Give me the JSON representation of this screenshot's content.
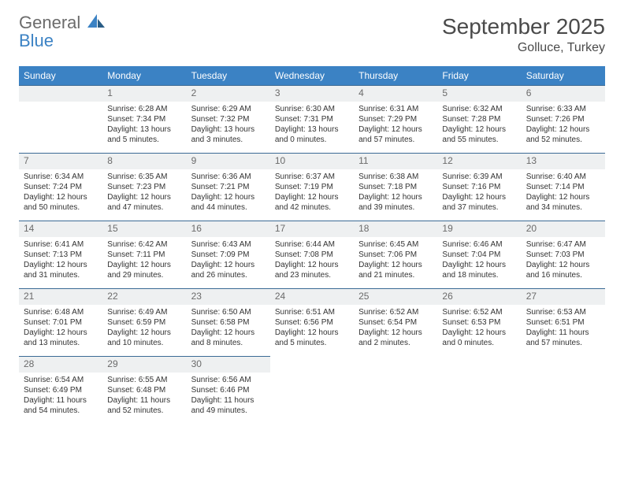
{
  "brand": {
    "part1": "General",
    "part2": "Blue"
  },
  "title": "September 2025",
  "location": "Golluce, Turkey",
  "colors": {
    "header_bg": "#3b82c4",
    "header_text": "#ffffff",
    "daynum_bg": "#eef0f1",
    "daynum_text": "#6b6b6b",
    "border": "#3b6a95",
    "title_text": "#4a4a4a",
    "body_text": "#333333",
    "logo_gray": "#6b6b6b",
    "logo_blue": "#3b82c4"
  },
  "day_names": [
    "Sunday",
    "Monday",
    "Tuesday",
    "Wednesday",
    "Thursday",
    "Friday",
    "Saturday"
  ],
  "weeks": [
    [
      null,
      {
        "n": "1",
        "sr": "Sunrise: 6:28 AM",
        "ss": "Sunset: 7:34 PM",
        "dl1": "Daylight: 13 hours",
        "dl2": "and 5 minutes."
      },
      {
        "n": "2",
        "sr": "Sunrise: 6:29 AM",
        "ss": "Sunset: 7:32 PM",
        "dl1": "Daylight: 13 hours",
        "dl2": "and 3 minutes."
      },
      {
        "n": "3",
        "sr": "Sunrise: 6:30 AM",
        "ss": "Sunset: 7:31 PM",
        "dl1": "Daylight: 13 hours",
        "dl2": "and 0 minutes."
      },
      {
        "n": "4",
        "sr": "Sunrise: 6:31 AM",
        "ss": "Sunset: 7:29 PM",
        "dl1": "Daylight: 12 hours",
        "dl2": "and 57 minutes."
      },
      {
        "n": "5",
        "sr": "Sunrise: 6:32 AM",
        "ss": "Sunset: 7:28 PM",
        "dl1": "Daylight: 12 hours",
        "dl2": "and 55 minutes."
      },
      {
        "n": "6",
        "sr": "Sunrise: 6:33 AM",
        "ss": "Sunset: 7:26 PM",
        "dl1": "Daylight: 12 hours",
        "dl2": "and 52 minutes."
      }
    ],
    [
      {
        "n": "7",
        "sr": "Sunrise: 6:34 AM",
        "ss": "Sunset: 7:24 PM",
        "dl1": "Daylight: 12 hours",
        "dl2": "and 50 minutes."
      },
      {
        "n": "8",
        "sr": "Sunrise: 6:35 AM",
        "ss": "Sunset: 7:23 PM",
        "dl1": "Daylight: 12 hours",
        "dl2": "and 47 minutes."
      },
      {
        "n": "9",
        "sr": "Sunrise: 6:36 AM",
        "ss": "Sunset: 7:21 PM",
        "dl1": "Daylight: 12 hours",
        "dl2": "and 44 minutes."
      },
      {
        "n": "10",
        "sr": "Sunrise: 6:37 AM",
        "ss": "Sunset: 7:19 PM",
        "dl1": "Daylight: 12 hours",
        "dl2": "and 42 minutes."
      },
      {
        "n": "11",
        "sr": "Sunrise: 6:38 AM",
        "ss": "Sunset: 7:18 PM",
        "dl1": "Daylight: 12 hours",
        "dl2": "and 39 minutes."
      },
      {
        "n": "12",
        "sr": "Sunrise: 6:39 AM",
        "ss": "Sunset: 7:16 PM",
        "dl1": "Daylight: 12 hours",
        "dl2": "and 37 minutes."
      },
      {
        "n": "13",
        "sr": "Sunrise: 6:40 AM",
        "ss": "Sunset: 7:14 PM",
        "dl1": "Daylight: 12 hours",
        "dl2": "and 34 minutes."
      }
    ],
    [
      {
        "n": "14",
        "sr": "Sunrise: 6:41 AM",
        "ss": "Sunset: 7:13 PM",
        "dl1": "Daylight: 12 hours",
        "dl2": "and 31 minutes."
      },
      {
        "n": "15",
        "sr": "Sunrise: 6:42 AM",
        "ss": "Sunset: 7:11 PM",
        "dl1": "Daylight: 12 hours",
        "dl2": "and 29 minutes."
      },
      {
        "n": "16",
        "sr": "Sunrise: 6:43 AM",
        "ss": "Sunset: 7:09 PM",
        "dl1": "Daylight: 12 hours",
        "dl2": "and 26 minutes."
      },
      {
        "n": "17",
        "sr": "Sunrise: 6:44 AM",
        "ss": "Sunset: 7:08 PM",
        "dl1": "Daylight: 12 hours",
        "dl2": "and 23 minutes."
      },
      {
        "n": "18",
        "sr": "Sunrise: 6:45 AM",
        "ss": "Sunset: 7:06 PM",
        "dl1": "Daylight: 12 hours",
        "dl2": "and 21 minutes."
      },
      {
        "n": "19",
        "sr": "Sunrise: 6:46 AM",
        "ss": "Sunset: 7:04 PM",
        "dl1": "Daylight: 12 hours",
        "dl2": "and 18 minutes."
      },
      {
        "n": "20",
        "sr": "Sunrise: 6:47 AM",
        "ss": "Sunset: 7:03 PM",
        "dl1": "Daylight: 12 hours",
        "dl2": "and 16 minutes."
      }
    ],
    [
      {
        "n": "21",
        "sr": "Sunrise: 6:48 AM",
        "ss": "Sunset: 7:01 PM",
        "dl1": "Daylight: 12 hours",
        "dl2": "and 13 minutes."
      },
      {
        "n": "22",
        "sr": "Sunrise: 6:49 AM",
        "ss": "Sunset: 6:59 PM",
        "dl1": "Daylight: 12 hours",
        "dl2": "and 10 minutes."
      },
      {
        "n": "23",
        "sr": "Sunrise: 6:50 AM",
        "ss": "Sunset: 6:58 PM",
        "dl1": "Daylight: 12 hours",
        "dl2": "and 8 minutes."
      },
      {
        "n": "24",
        "sr": "Sunrise: 6:51 AM",
        "ss": "Sunset: 6:56 PM",
        "dl1": "Daylight: 12 hours",
        "dl2": "and 5 minutes."
      },
      {
        "n": "25",
        "sr": "Sunrise: 6:52 AM",
        "ss": "Sunset: 6:54 PM",
        "dl1": "Daylight: 12 hours",
        "dl2": "and 2 minutes."
      },
      {
        "n": "26",
        "sr": "Sunrise: 6:52 AM",
        "ss": "Sunset: 6:53 PM",
        "dl1": "Daylight: 12 hours",
        "dl2": "and 0 minutes."
      },
      {
        "n": "27",
        "sr": "Sunrise: 6:53 AM",
        "ss": "Sunset: 6:51 PM",
        "dl1": "Daylight: 11 hours",
        "dl2": "and 57 minutes."
      }
    ],
    [
      {
        "n": "28",
        "sr": "Sunrise: 6:54 AM",
        "ss": "Sunset: 6:49 PM",
        "dl1": "Daylight: 11 hours",
        "dl2": "and 54 minutes."
      },
      {
        "n": "29",
        "sr": "Sunrise: 6:55 AM",
        "ss": "Sunset: 6:48 PM",
        "dl1": "Daylight: 11 hours",
        "dl2": "and 52 minutes."
      },
      {
        "n": "30",
        "sr": "Sunrise: 6:56 AM",
        "ss": "Sunset: 6:46 PM",
        "dl1": "Daylight: 11 hours",
        "dl2": "and 49 minutes."
      },
      null,
      null,
      null,
      null
    ]
  ]
}
